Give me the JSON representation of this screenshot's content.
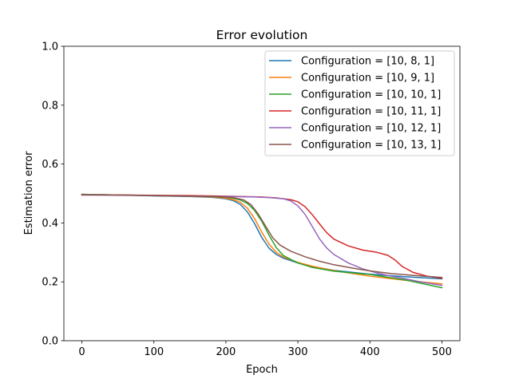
{
  "chart_data": {
    "type": "line",
    "title": "Error evolution",
    "xlabel": "Epoch",
    "ylabel": "Estimation error",
    "xlim": [
      -25,
      525
    ],
    "ylim": [
      0.0,
      1.0
    ],
    "xticks": [
      0,
      100,
      200,
      300,
      400,
      500
    ],
    "xtick_labels": [
      "0",
      "100",
      "200",
      "300",
      "400",
      "500"
    ],
    "yticks": [
      0.0,
      0.2,
      0.4,
      0.6,
      0.8,
      1.0
    ],
    "ytick_labels": [
      "0.0",
      "0.2",
      "0.4",
      "0.6",
      "0.8",
      "1.0"
    ],
    "grid": false,
    "legend_position": "upper right",
    "series": [
      {
        "name": "Configuration = [10, 8, 1]",
        "color": "#1f77b4",
        "points": [
          [
            0,
            0.497
          ],
          [
            50,
            0.495
          ],
          [
            100,
            0.492
          ],
          [
            150,
            0.49
          ],
          [
            180,
            0.487
          ],
          [
            200,
            0.482
          ],
          [
            210,
            0.476
          ],
          [
            220,
            0.463
          ],
          [
            230,
            0.437
          ],
          [
            240,
            0.397
          ],
          [
            250,
            0.35
          ],
          [
            260,
            0.314
          ],
          [
            270,
            0.293
          ],
          [
            280,
            0.28
          ],
          [
            300,
            0.264
          ],
          [
            320,
            0.252
          ],
          [
            350,
            0.239
          ],
          [
            400,
            0.226
          ],
          [
            450,
            0.217
          ],
          [
            500,
            0.21
          ]
        ]
      },
      {
        "name": "Configuration = [10, 9, 1]",
        "color": "#ff7f0e",
        "points": [
          [
            0,
            0.497
          ],
          [
            50,
            0.495
          ],
          [
            100,
            0.493
          ],
          [
            150,
            0.491
          ],
          [
            180,
            0.488
          ],
          [
            200,
            0.484
          ],
          [
            210,
            0.479
          ],
          [
            220,
            0.47
          ],
          [
            230,
            0.45
          ],
          [
            240,
            0.414
          ],
          [
            250,
            0.368
          ],
          [
            260,
            0.328
          ],
          [
            270,
            0.3
          ],
          [
            280,
            0.284
          ],
          [
            300,
            0.266
          ],
          [
            320,
            0.253
          ],
          [
            350,
            0.238
          ],
          [
            400,
            0.219
          ],
          [
            450,
            0.205
          ],
          [
            500,
            0.193
          ]
        ]
      },
      {
        "name": "Configuration = [10, 10, 1]",
        "color": "#2ca02c",
        "points": [
          [
            0,
            0.497
          ],
          [
            50,
            0.495
          ],
          [
            100,
            0.493
          ],
          [
            150,
            0.491
          ],
          [
            180,
            0.489
          ],
          [
            200,
            0.487
          ],
          [
            210,
            0.484
          ],
          [
            220,
            0.478
          ],
          [
            230,
            0.466
          ],
          [
            240,
            0.442
          ],
          [
            250,
            0.405
          ],
          [
            260,
            0.358
          ],
          [
            270,
            0.316
          ],
          [
            280,
            0.289
          ],
          [
            300,
            0.264
          ],
          [
            320,
            0.249
          ],
          [
            350,
            0.236
          ],
          [
            400,
            0.225
          ],
          [
            450,
            0.206
          ],
          [
            500,
            0.18
          ]
        ]
      },
      {
        "name": "Configuration = [10, 11, 1]",
        "color": "#d62728",
        "points": [
          [
            0,
            0.495
          ],
          [
            50,
            0.495
          ],
          [
            100,
            0.494
          ],
          [
            150,
            0.493
          ],
          [
            200,
            0.491
          ],
          [
            250,
            0.488
          ],
          [
            270,
            0.485
          ],
          [
            290,
            0.479
          ],
          [
            300,
            0.472
          ],
          [
            310,
            0.455
          ],
          [
            320,
            0.428
          ],
          [
            330,
            0.397
          ],
          [
            340,
            0.367
          ],
          [
            350,
            0.345
          ],
          [
            370,
            0.322
          ],
          [
            390,
            0.308
          ],
          [
            410,
            0.3
          ],
          [
            425,
            0.29
          ],
          [
            435,
            0.274
          ],
          [
            445,
            0.252
          ],
          [
            460,
            0.232
          ],
          [
            480,
            0.219
          ],
          [
            500,
            0.212
          ]
        ]
      },
      {
        "name": "Configuration = [10, 12, 1]",
        "color": "#9467bd",
        "points": [
          [
            0,
            0.495
          ],
          [
            50,
            0.494
          ],
          [
            100,
            0.493
          ],
          [
            150,
            0.491
          ],
          [
            200,
            0.49
          ],
          [
            240,
            0.488
          ],
          [
            260,
            0.486
          ],
          [
            280,
            0.482
          ],
          [
            290,
            0.475
          ],
          [
            300,
            0.458
          ],
          [
            310,
            0.429
          ],
          [
            320,
            0.388
          ],
          [
            330,
            0.346
          ],
          [
            340,
            0.315
          ],
          [
            350,
            0.293
          ],
          [
            370,
            0.264
          ],
          [
            390,
            0.244
          ],
          [
            410,
            0.23
          ],
          [
            430,
            0.219
          ],
          [
            450,
            0.21
          ],
          [
            470,
            0.2
          ],
          [
            500,
            0.188
          ]
        ]
      },
      {
        "name": "Configuration = [10, 13, 1]",
        "color": "#8c564b",
        "points": [
          [
            0,
            0.496
          ],
          [
            50,
            0.495
          ],
          [
            100,
            0.493
          ],
          [
            150,
            0.491
          ],
          [
            190,
            0.489
          ],
          [
            210,
            0.486
          ],
          [
            225,
            0.478
          ],
          [
            235,
            0.462
          ],
          [
            245,
            0.43
          ],
          [
            255,
            0.39
          ],
          [
            265,
            0.35
          ],
          [
            275,
            0.325
          ],
          [
            290,
            0.304
          ],
          [
            310,
            0.285
          ],
          [
            330,
            0.27
          ],
          [
            350,
            0.258
          ],
          [
            380,
            0.245
          ],
          [
            400,
            0.237
          ],
          [
            430,
            0.228
          ],
          [
            460,
            0.222
          ],
          [
            500,
            0.215
          ]
        ]
      }
    ]
  }
}
